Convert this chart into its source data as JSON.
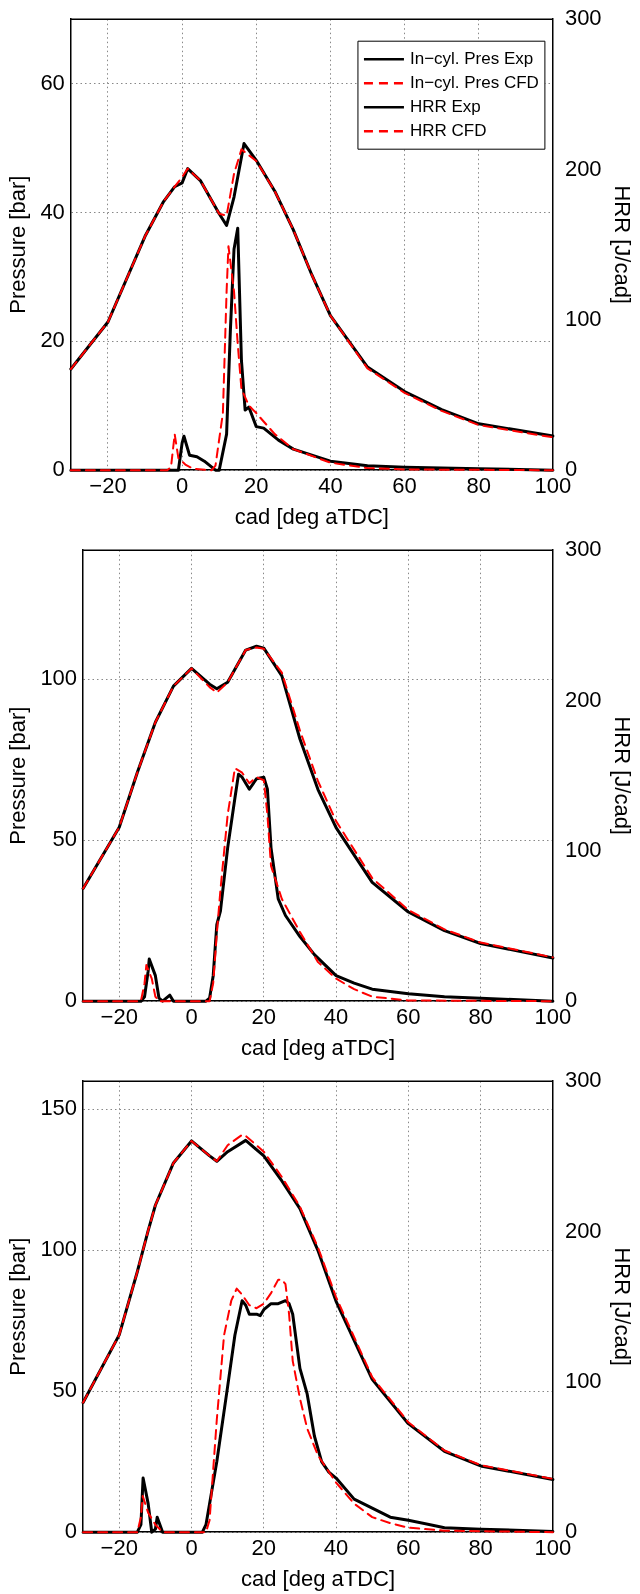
{
  "chart_data": [
    {
      "type": "line",
      "xlabel": "cad [deg aTDC]",
      "ylabel": "Pressure [bar]",
      "y2label": "HRR [J/cad]",
      "xlim": [
        -30,
        100
      ],
      "xticks": [
        -20,
        0,
        20,
        40,
        60,
        80,
        100
      ],
      "ylim": [
        0,
        70
      ],
      "yticks": [
        0,
        20,
        40,
        60
      ],
      "y2lim": [
        0,
        300
      ],
      "y2ticks": [
        0,
        100,
        200,
        300
      ],
      "grid": true,
      "legend": "top right",
      "marker": "none",
      "series": [
        {
          "name": "In−cyl. Pres Exp",
          "color": "#000000",
          "line_style": "solid",
          "x": [
            -30,
            -20,
            -10,
            -5,
            -2,
            0,
            1.5,
            5,
            10,
            12,
            14,
            16.7,
            20,
            25,
            30,
            35,
            40,
            50,
            60,
            70,
            80,
            100
          ],
          "values": [
            15.7,
            23,
            36.3,
            41.7,
            44,
            44.6,
            46.8,
            44.9,
            39.8,
            38,
            42.4,
            50.7,
            48.1,
            43.3,
            37.3,
            30.3,
            24,
            16,
            12.2,
            9.4,
            7.2,
            5.3
          ]
        },
        {
          "name": "In−cyl. Pres CFD",
          "color": "#ff0000",
          "line_style": "dashed",
          "x": [
            -30,
            -20,
            -10,
            -5,
            -2,
            0,
            1.5,
            5,
            10,
            12,
            14,
            16,
            20,
            25,
            30,
            35,
            40,
            50,
            60,
            70,
            80,
            100
          ],
          "values": [
            15.7,
            23,
            36.3,
            41.7,
            44,
            45.5,
            46.8,
            44.9,
            39.8,
            39.5,
            46,
            49.8,
            48,
            43.3,
            37.3,
            30.3,
            24,
            15.8,
            12,
            9.2,
            7,
            5.1
          ]
        },
        {
          "name": "HRR Exp",
          "color": "#000000",
          "line_style": "solid",
          "axis": "y2",
          "x": [
            -30,
            -1,
            0,
            0.5,
            2,
            4,
            6,
            8,
            9,
            10,
            12,
            13,
            14,
            15,
            16,
            17,
            18,
            20,
            22,
            24,
            26,
            30,
            40,
            50,
            60,
            80,
            100
          ],
          "values": [
            0,
            0,
            18,
            22.6,
            10,
            9,
            6,
            2,
            0,
            0,
            24,
            92,
            147,
            161,
            73,
            40,
            42,
            29,
            28,
            24,
            20,
            14,
            6,
            3,
            2,
            1,
            0
          ]
        },
        {
          "name": "HRR CFD",
          "color": "#ff0000",
          "line_style": "dashed",
          "axis": "y2",
          "x": [
            -30,
            -4,
            -3,
            -2,
            -1,
            1,
            3,
            8,
            9,
            11,
            12,
            12.5,
            14,
            15,
            16,
            18,
            20,
            25,
            30,
            40,
            50,
            60,
            100
          ],
          "values": [
            0,
            0,
            2,
            24,
            8,
            3.5,
            1,
            0,
            3,
            38,
            119,
            149,
            119,
            84,
            54,
            43,
            38,
            24,
            14,
            5,
            1.4,
            0.5,
            0
          ]
        }
      ]
    },
    {
      "type": "line",
      "xlabel": "cad [deg aTDC]",
      "ylabel": "Pressure [bar]",
      "y2label": "HRR [J/cad]",
      "xlim": [
        -30,
        100
      ],
      "xticks": [
        -20,
        0,
        20,
        40,
        60,
        80,
        100
      ],
      "ylim": [
        0,
        140
      ],
      "yticks": [
        0,
        50,
        100
      ],
      "y2lim": [
        0,
        300
      ],
      "y2ticks": [
        0,
        100,
        200,
        300
      ],
      "grid": true,
      "marker": "none",
      "series": [
        {
          "color": "#000000",
          "line_style": "solid",
          "x": [
            -30,
            -20,
            -15,
            -10,
            -5,
            0,
            5,
            7,
            10,
            15,
            18,
            20,
            25,
            30,
            35,
            40,
            50,
            60,
            70,
            80,
            100
          ],
          "values": [
            35,
            54,
            71,
            86.6,
            97.8,
            103.3,
            98.4,
            97,
            99,
            109,
            110.2,
            109.6,
            101,
            81.4,
            65.7,
            53.9,
            36.9,
            27.7,
            21.9,
            17.9,
            13.4
          ]
        },
        {
          "color": "#ff0000",
          "line_style": "dashed",
          "x": [
            -30,
            -20,
            -15,
            -10,
            -5,
            0,
            5,
            7,
            10,
            15,
            18,
            20,
            25,
            30,
            35,
            40,
            50,
            60,
            70,
            80,
            100
          ],
          "values": [
            35,
            54,
            71,
            86.6,
            97.8,
            103.3,
            97.5,
            95.8,
            99,
            109,
            109.8,
            109.4,
            102,
            84,
            68.3,
            55.9,
            38.2,
            28.3,
            22.3,
            18.2,
            13.6
          ]
        },
        {
          "color": "#000000",
          "line_style": "solid",
          "axis": "y2",
          "x": [
            -30,
            -14,
            -13,
            -12,
            -11.7,
            -10,
            -9,
            -8,
            -6,
            -5,
            0,
            4,
            5,
            6,
            7,
            8,
            10,
            12,
            13,
            14,
            16,
            18,
            20,
            21,
            22,
            24,
            26,
            30,
            34,
            40,
            45,
            50,
            60,
            70,
            80,
            100
          ],
          "values": [
            0,
            0,
            3,
            20,
            28,
            17,
            2,
            0,
            4,
            0,
            0,
            0,
            2,
            17,
            51,
            60,
            102,
            135,
            151,
            149,
            141,
            148,
            149,
            141,
            102,
            68,
            57,
            43,
            31,
            17,
            12,
            8,
            5,
            3,
            2,
            0
          ]
        },
        {
          "color": "#ff0000",
          "line_style": "dashed",
          "axis": "y2",
          "x": [
            -30,
            -14,
            -13,
            -12.5,
            -11,
            -10,
            -9,
            5,
            6,
            7,
            8,
            10,
            12,
            14,
            16,
            18,
            20,
            21,
            22,
            25,
            30,
            35,
            40,
            45,
            50,
            60,
            100
          ],
          "values": [
            0,
            0,
            12,
            24,
            15,
            3,
            0,
            0,
            12,
            45,
            74,
            124,
            155,
            152,
            145,
            149,
            147,
            124,
            90,
            68,
            46,
            26,
            15,
            8,
            3,
            0.5,
            0
          ]
        }
      ]
    },
    {
      "type": "line",
      "xlabel": "cad [deg aTDC]",
      "ylabel": "Pressure [bar]",
      "y2label": "HRR [J/cad]",
      "xlim": [
        -30,
        100
      ],
      "xticks": [
        -20,
        0,
        20,
        40,
        60,
        80,
        100
      ],
      "ylim": [
        0,
        160
      ],
      "yticks": [
        0,
        50,
        100,
        150
      ],
      "y2lim": [
        0,
        300
      ],
      "y2ticks": [
        0,
        100,
        200,
        300
      ],
      "grid": true,
      "marker": "none",
      "series": [
        {
          "color": "#000000",
          "line_style": "solid",
          "x": [
            -30,
            -20,
            -15,
            -12,
            -10,
            -5,
            0,
            5,
            7,
            10,
            15,
            20,
            25,
            30,
            35,
            40,
            50,
            60,
            70,
            80,
            100
          ],
          "values": [
            46,
            70,
            92.4,
            107,
            116,
            131,
            138.8,
            133.5,
            131.6,
            135,
            139,
            133.5,
            124.6,
            114.8,
            99.9,
            81.9,
            54.2,
            38.5,
            28.7,
            23.5,
            18.7
          ]
        },
        {
          "color": "#ff0000",
          "line_style": "dashed",
          "x": [
            -30,
            -20,
            -15,
            -12,
            -10,
            -5,
            0,
            5,
            7,
            10,
            14,
            15,
            20,
            25,
            30,
            35,
            40,
            50,
            60,
            70,
            80,
            100
          ],
          "values": [
            46,
            70,
            92.4,
            107,
            116,
            131,
            138.8,
            133.5,
            131.6,
            137.3,
            141,
            140.6,
            135,
            126,
            115.5,
            101,
            83.4,
            55,
            39,
            29,
            23.8,
            18.9
          ]
        },
        {
          "color": "#000000",
          "line_style": "solid",
          "axis": "y2",
          "x": [
            -30,
            -15,
            -14,
            -13.4,
            -12,
            -11,
            -10,
            -9.5,
            -8,
            3,
            4,
            5,
            7,
            10,
            12,
            14,
            15,
            16,
            18,
            19,
            20,
            22,
            24,
            26,
            27,
            28,
            30,
            32,
            34,
            36,
            38,
            40,
            45,
            50,
            55,
            60,
            70,
            80,
            100
          ],
          "values": [
            0,
            0,
            5,
            36,
            19,
            0,
            2,
            10,
            0,
            0,
            5,
            19,
            47,
            97,
            131,
            154,
            151,
            145,
            145,
            144,
            148,
            152,
            152,
            154,
            152,
            145,
            109,
            92,
            64,
            47,
            40,
            36,
            22,
            16,
            10,
            8,
            3,
            2,
            0.5
          ]
        },
        {
          "color": "#ff0000",
          "line_style": "dashed",
          "axis": "y2",
          "x": [
            -30,
            -15,
            -14,
            -13.5,
            -12,
            -10,
            -8,
            4,
            5,
            7,
            9,
            11,
            12.5,
            14,
            16,
            18,
            20,
            22,
            24,
            25,
            26,
            27,
            28,
            30,
            32,
            35,
            40,
            45,
            50,
            55,
            60,
            70,
            100
          ],
          "values": [
            0,
            0,
            10,
            24,
            13,
            5,
            0,
            0,
            8,
            75,
            131,
            154,
            162,
            158,
            151,
            149,
            152,
            159,
            168,
            168,
            165,
            145,
            114,
            89,
            69,
            51,
            33,
            19,
            10,
            6,
            3,
            1,
            0
          ]
        }
      ]
    }
  ]
}
